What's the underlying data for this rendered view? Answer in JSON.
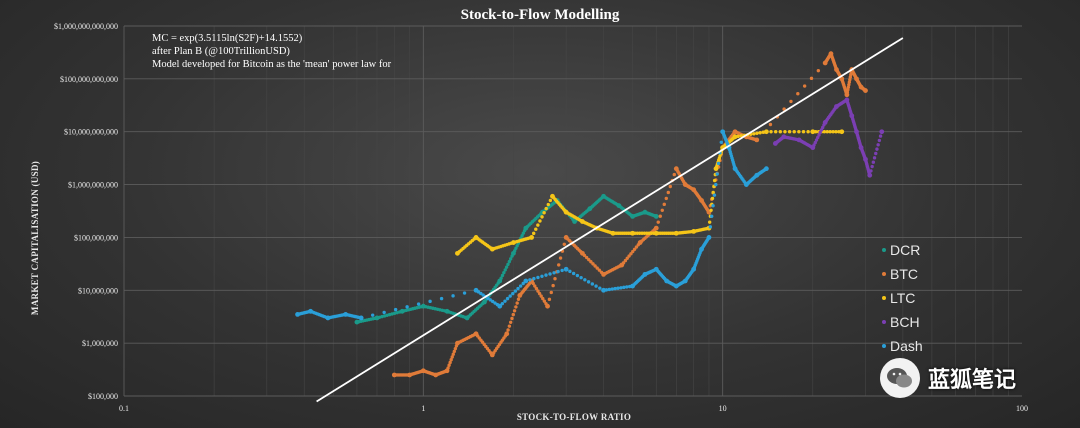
{
  "chart_data": {
    "type": "scatter",
    "title": "Stock-to-Flow  Modelling",
    "xlabel": "STOCK-TO-FLOW RATIO",
    "ylabel": "MARKET CAPITALISATION  (USD)",
    "xscale": "log",
    "yscale": "log",
    "xlim": [
      0.1,
      100
    ],
    "ylim": [
      100000,
      1000000000000
    ],
    "x_ticks": [
      "0.1",
      "1",
      "10",
      "100"
    ],
    "y_ticks": [
      "$100,000",
      "$1,000,000",
      "$10,000,000",
      "$100,000,000",
      "$1,000,000,000",
      "$10,000,000,000",
      "$100,000,000,000",
      "$1,000,000,000,000"
    ],
    "annotations": [
      "MC = exp(3.5115ln(S2F)+14.1552)",
      "after Plan B (@100TrillionUSD)",
      "Model developed for Bitcoin as the 'mean' power law for"
    ],
    "model_line": {
      "a": 3.5115,
      "b": 14.1552
    },
    "legend_position": "right",
    "series": [
      {
        "name": "DCR",
        "color": "#1a9a8a",
        "x": [
          0.6,
          0.7,
          0.85,
          1.0,
          1.2,
          1.4,
          1.6,
          1.8,
          2.0,
          2.2,
          2.5,
          2.8,
          3.2,
          3.6,
          4.0,
          4.5,
          5.0,
          5.5,
          6.0
        ],
        "y": [
          2500000.0,
          3000000.0,
          4000000.0,
          5000000.0,
          4000000.0,
          3000000.0,
          6000000.0,
          15000000.0,
          50000000.0,
          150000000.0,
          300000000.0,
          500000000.0,
          200000000.0,
          350000000.0,
          600000000.0,
          400000000.0,
          250000000.0,
          300000000.0,
          250000000.0
        ]
      },
      {
        "name": "BTC",
        "color": "#e07b39",
        "x": [
          0.8,
          0.9,
          1.0,
          1.1,
          1.2,
          1.3,
          1.5,
          1.7,
          1.9,
          2.1,
          2.3,
          2.6,
          3.0,
          3.4,
          4.0,
          4.6,
          5.3,
          6.0,
          7.0,
          7.5,
          8.0,
          8.5,
          9.0,
          10.0,
          11.0,
          12.0,
          13.0,
          22.0,
          23.0,
          24.0,
          25.0,
          26.0,
          27.0,
          28.0,
          29.0,
          30.0
        ],
        "y": [
          250000.0,
          250000.0,
          300000.0,
          250000.0,
          300000.0,
          1000000.0,
          1500000.0,
          600000.0,
          1500000.0,
          8000000.0,
          15000000.0,
          5000000.0,
          100000000.0,
          50000000.0,
          20000000.0,
          30000000.0,
          80000000.0,
          150000000.0,
          2000000000.0,
          1000000000.0,
          800000000.0,
          500000000.0,
          300000000.0,
          5000000000.0,
          10000000000.0,
          8000000000.0,
          7000000000.0,
          200000000000.0,
          300000000000.0,
          150000000000.0,
          100000000000.0,
          50000000000.0,
          150000000000.0,
          100000000000.0,
          70000000000.0,
          60000000000.0
        ]
      },
      {
        "name": "LTC",
        "color": "#f5c518",
        "x": [
          1.3,
          1.5,
          1.7,
          2.0,
          2.3,
          2.7,
          3.0,
          3.4,
          3.8,
          4.3,
          5.0,
          6.0,
          7.0,
          8.0,
          9.0,
          9.5,
          10.0,
          11.0,
          14.0,
          20.0,
          25.0
        ],
        "y": [
          50000000.0,
          100000000.0,
          60000000.0,
          80000000.0,
          100000000.0,
          600000000.0,
          300000000.0,
          200000000.0,
          150000000.0,
          120000000.0,
          120000000.0,
          120000000.0,
          120000000.0,
          130000000.0,
          150000000.0,
          2000000000.0,
          5000000000.0,
          8000000000.0,
          10000000000.0,
          10000000000.0,
          10000000000.0
        ]
      },
      {
        "name": "BCH",
        "color": "#7b3fb3",
        "x": [
          15.0,
          16.0,
          18.0,
          20.0,
          22.0,
          24.0,
          26.0,
          27.0,
          28.0,
          29.0,
          30.0,
          31.0,
          34.0
        ],
        "y": [
          6000000000.0,
          8000000000.0,
          7000000000.0,
          5000000000.0,
          15000000000.0,
          30000000000.0,
          40000000000.0,
          20000000000.0,
          10000000000.0,
          5000000000.0,
          3000000000.0,
          1500000000.0,
          10000000000.0
        ]
      },
      {
        "name": "Dash",
        "color": "#2a9fd8",
        "x": [
          0.38,
          0.42,
          0.48,
          0.55,
          0.62,
          1.5,
          1.8,
          2.2,
          3.0,
          4.0,
          5.0,
          5.5,
          6.0,
          6.5,
          7.0,
          7.5,
          8.0,
          8.5,
          9.0,
          10.0,
          10.5,
          11.0,
          12.0,
          13.0,
          14.0
        ],
        "y": [
          3500000.0,
          4000000.0,
          3000000.0,
          3500000.0,
          3000000.0,
          10000000.0,
          5000000.0,
          15000000.0,
          25000000.0,
          10000000.0,
          12000000.0,
          20000000.0,
          25000000.0,
          15000000.0,
          12000000.0,
          15000000.0,
          25000000.0,
          60000000.0,
          100000000.0,
          10000000000.0,
          5000000000.0,
          2000000000.0,
          1000000000.0,
          1500000000.0,
          2000000000.0
        ]
      }
    ]
  },
  "watermark": {
    "text": "蓝狐笔记"
  }
}
